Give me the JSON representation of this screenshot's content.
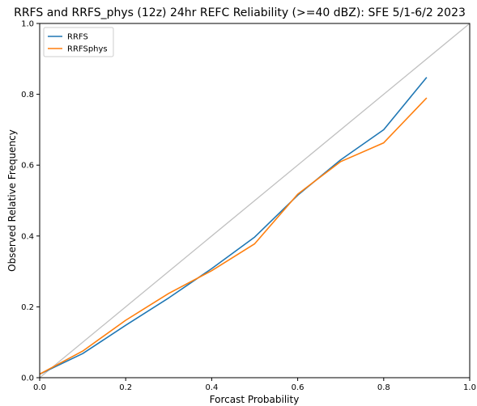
{
  "chart_data": {
    "type": "line",
    "title": "RRFS and RRFS_phys (12z) 24hr REFC Reliability (>=40 dBZ): SFE 5/1-6/2 2023",
    "xlabel": "Forcast Probability",
    "ylabel": "Observed Relative Frequency",
    "xlim": [
      0.0,
      1.0
    ],
    "ylim": [
      0.0,
      1.0
    ],
    "xticks": [
      "0.0",
      "0.2",
      "0.4",
      "0.6",
      "0.8",
      "1.0"
    ],
    "yticks": [
      "0.0",
      "0.2",
      "0.4",
      "0.6",
      "0.8",
      "1.0"
    ],
    "grid": false,
    "legend_position": "top-left",
    "reference_line": {
      "x": [
        0.0,
        1.0
      ],
      "y": [
        0.0,
        1.0
      ],
      "color": "#c0c0c0"
    },
    "series": [
      {
        "name": "RRFS",
        "color": "#1f77b4",
        "x": [
          0.0,
          0.1,
          0.2,
          0.3,
          0.4,
          0.5,
          0.6,
          0.7,
          0.8,
          0.9
        ],
        "y": [
          0.01,
          0.068,
          0.148,
          0.225,
          0.308,
          0.397,
          0.515,
          0.615,
          0.7,
          0.848
        ]
      },
      {
        "name": "RRFSphys",
        "color": "#ff7f0e",
        "x": [
          0.0,
          0.1,
          0.2,
          0.3,
          0.4,
          0.5,
          0.6,
          0.7,
          0.8,
          0.9
        ],
        "y": [
          0.01,
          0.075,
          0.162,
          0.238,
          0.302,
          0.378,
          0.518,
          0.61,
          0.663,
          0.79
        ]
      }
    ]
  }
}
